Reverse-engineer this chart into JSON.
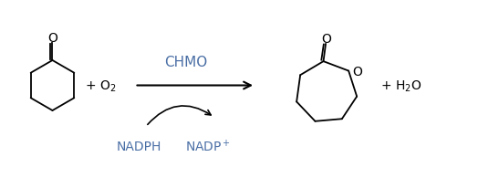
{
  "background_color": "#ffffff",
  "chmo_color": "#4a6fa5",
  "fig_width": 5.24,
  "fig_height": 2.07,
  "dpi": 100,
  "chmo_label": "CHMO",
  "o2_label": "+ O$_2$",
  "water_label": "+ H$_2$O",
  "nadph_label": "NADPH",
  "nadp_label": "NADP$^+$",
  "line_width": 1.3,
  "xlim": [
    0,
    10.48
  ],
  "ylim": [
    0,
    4.14
  ]
}
